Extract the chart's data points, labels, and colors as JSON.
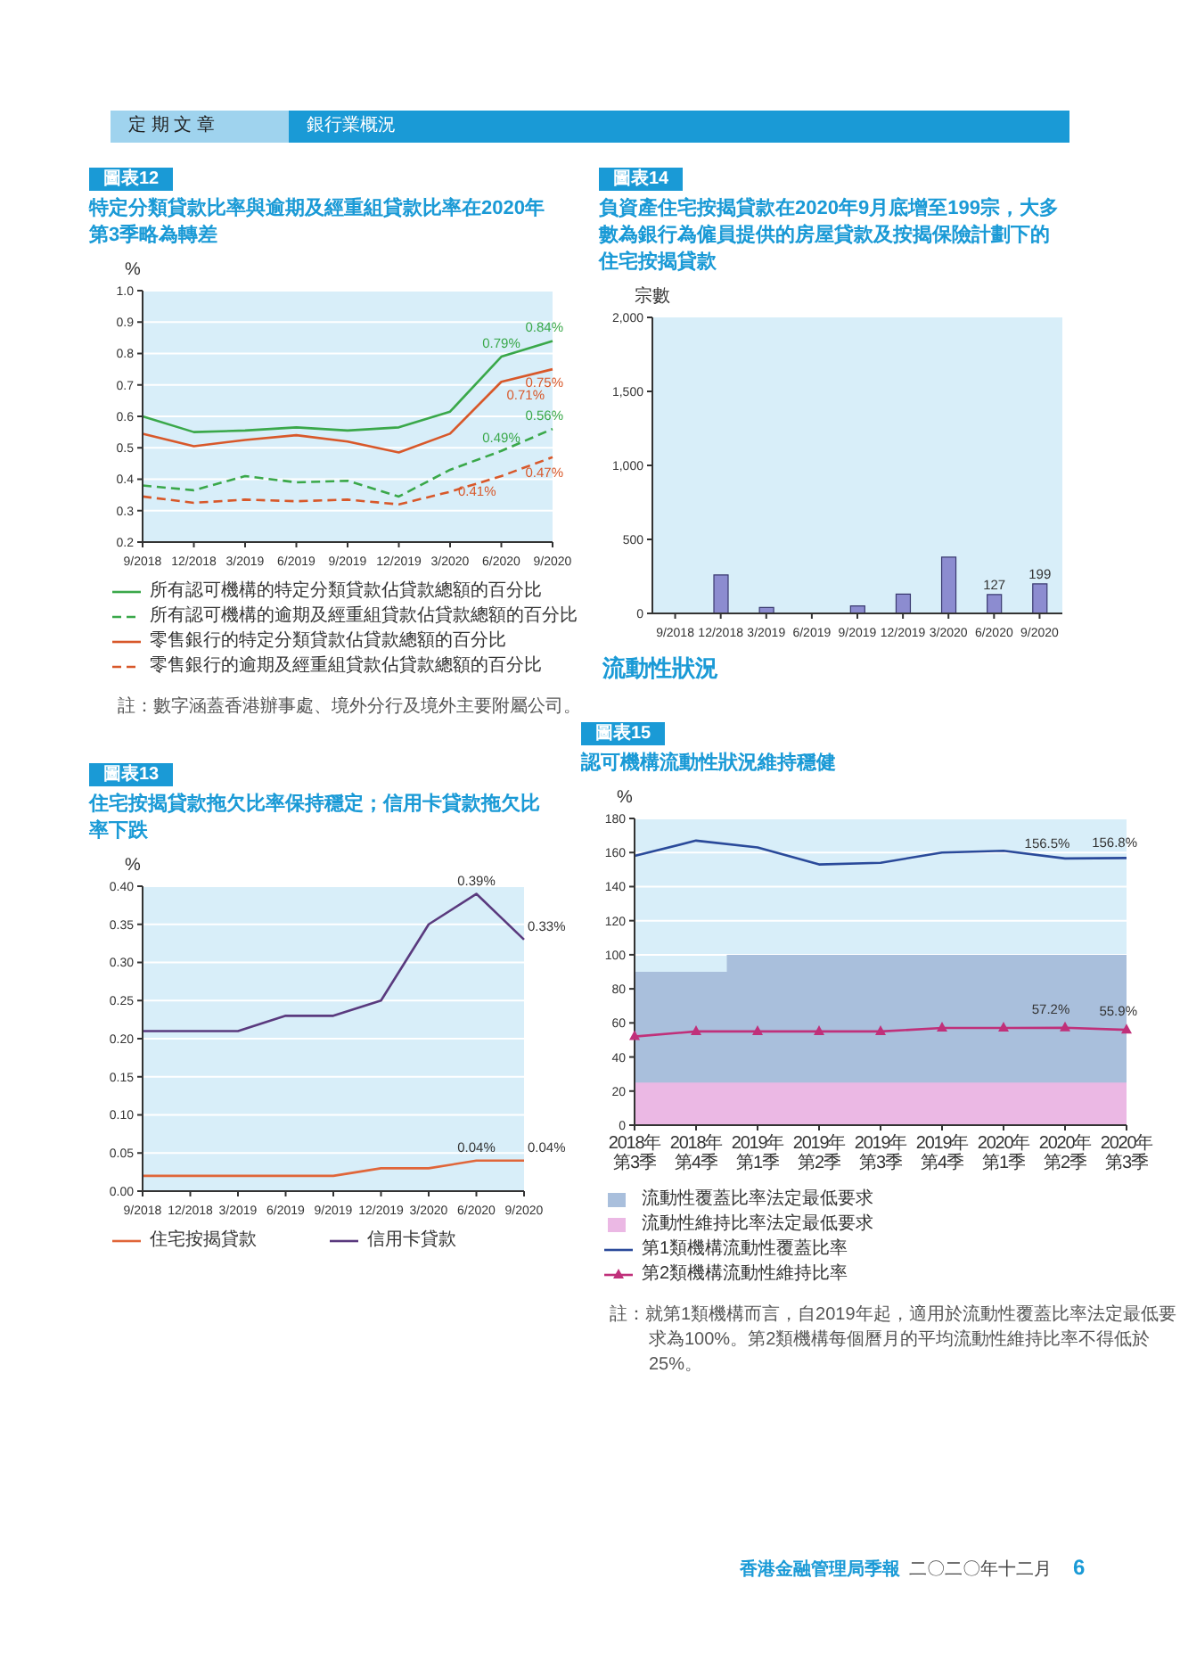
{
  "chart_data": [
    {
      "type": "line",
      "subtitle": "圖表12",
      "title": "特定分類貸款比率與逾期及經重組貸款比率在2020年第3季略為轉差",
      "ylabel": "%",
      "categories": [
        "9/2018",
        "12/2018",
        "3/2019",
        "6/2019",
        "9/2019",
        "12/2019",
        "3/2020",
        "6/2020",
        "9/2020"
      ],
      "series": [
        {
          "name": "所有認可機構的特定分類貸款佔貸款總額的百分比",
          "color": "#3aa84a",
          "line_style": "solid",
          "values": [
            0.6,
            0.55,
            0.555,
            0.565,
            0.555,
            0.565,
            0.615,
            0.79,
            0.84
          ],
          "value_labels": [
            null,
            null,
            null,
            null,
            null,
            null,
            null,
            "0.79%",
            "0.84%"
          ]
        },
        {
          "name": "所有認可機構的逾期及經重組貸款佔貸款總額的百分比",
          "color": "#3aa84a",
          "line_style": "dashed",
          "values": [
            0.38,
            0.365,
            0.41,
            0.39,
            0.395,
            0.345,
            0.43,
            0.49,
            0.56
          ],
          "value_labels": [
            null,
            null,
            null,
            null,
            null,
            null,
            null,
            "0.49%",
            "0.56%"
          ]
        },
        {
          "name": "零售銀行的特定分類貸款佔貸款總額的百分比",
          "color": "#d8582a",
          "line_style": "solid",
          "values": [
            0.545,
            0.505,
            0.525,
            0.54,
            0.52,
            0.485,
            0.545,
            0.71,
            0.75
          ],
          "value_labels": [
            null,
            null,
            null,
            null,
            null,
            null,
            null,
            "0.71%",
            "0.75%"
          ]
        },
        {
          "name": "零售銀行的逾期及經重組貸款佔貸款總額的百分比",
          "color": "#d8582a",
          "line_style": "dashed",
          "values": [
            0.345,
            0.325,
            0.335,
            0.33,
            0.335,
            0.32,
            0.36,
            0.41,
            0.47
          ],
          "value_labels": [
            null,
            null,
            null,
            null,
            null,
            null,
            null,
            "0.41%",
            "0.47%"
          ]
        }
      ],
      "ylim": [
        0.2,
        1.0
      ],
      "yticks": [
        0.2,
        0.3,
        0.4,
        0.5,
        0.6,
        0.7,
        0.8,
        0.9,
        {
          "value": 1,
          "label": "1.0"
        }
      ],
      "grid": "y",
      "legend": "bottom",
      "annotations": [
        "註：數字涵蓋香港辦事處、境外分行及境外主要附屬公司。"
      ]
    },
    {
      "type": "bar",
      "subtitle": "圖表14",
      "title": "負資產住宅按揭貸款在2020年9月底增至199宗，大多數為銀行為僱員提供的房屋貸款及按揭保險計劃下的住宅按揭貸款",
      "ylabel": "宗數",
      "categories": [
        "9/2018",
        "12/2018",
        "3/2019",
        "6/2019",
        "9/2019",
        "12/2019",
        "3/2020",
        "6/2020",
        "9/2020"
      ],
      "values": [
        0,
        260,
        40,
        0,
        50,
        130,
        380,
        127,
        199
      ],
      "color": "#8c8cd0",
      "value_labels": [
        null,
        null,
        null,
        null,
        null,
        null,
        null,
        "127",
        "199"
      ],
      "ylim": [
        0,
        2000
      ],
      "yticks": [
        0,
        500,
        {
          "value": 1000,
          "label": "1,000"
        },
        {
          "value": 1500,
          "label": "1,500"
        },
        {
          "value": 2000,
          "label": "2,000"
        }
      ]
    },
    {
      "type": "line",
      "subtitle": "圖表13",
      "title": "住宅按揭貸款拖欠比率保持穩定；信用卡貸款拖欠比率下跌",
      "ylabel": "%",
      "categories": [
        "9/2018",
        "12/2018",
        "3/2019",
        "6/2019",
        "9/2019",
        "12/2019",
        "3/2020",
        "6/2020",
        "9/2020"
      ],
      "series": [
        {
          "name": "住宅按揭貸款",
          "color": "#e0663a",
          "values": [
            0.02,
            0.02,
            0.02,
            0.02,
            0.02,
            0.03,
            0.03,
            0.04,
            0.04
          ],
          "value_labels": [
            null,
            null,
            null,
            null,
            null,
            null,
            null,
            "0.04%",
            "0.04%"
          ]
        },
        {
          "name": "信用卡貸款",
          "color": "#5a3a7e",
          "values": [
            0.21,
            0.21,
            0.21,
            0.23,
            0.23,
            0.25,
            0.35,
            0.39,
            0.33
          ],
          "value_labels": [
            null,
            null,
            null,
            null,
            null,
            null,
            null,
            "0.39%",
            "0.33%"
          ]
        }
      ],
      "ylim": [
        0,
        0.4
      ],
      "yticks": [
        {
          "value": 0,
          "label": "0.00"
        },
        {
          "value": 0.05,
          "label": "0.05"
        },
        {
          "value": 0.1,
          "label": "0.10"
        },
        {
          "value": 0.15,
          "label": "0.15"
        },
        {
          "value": 0.2,
          "label": "0.20"
        },
        {
          "value": 0.25,
          "label": "0.25"
        },
        {
          "value": 0.3,
          "label": "0.30"
        },
        {
          "value": 0.35,
          "label": "0.35"
        },
        {
          "value": 0.4,
          "label": "0.40"
        }
      ],
      "grid": "y",
      "legend": "bottom"
    },
    {
      "type": "line",
      "subtitle": "圖表15",
      "title": "認可機構流動性狀況維持穩健",
      "ylabel": "%",
      "categories": [
        "2018年第3季",
        "2018年第4季",
        "2019年第1季",
        "2019年第2季",
        "2019年第3季",
        "2019年第4季",
        "2020年第1季",
        "2020年第2季",
        "2020年第3季"
      ],
      "series": [
        {
          "name": "流動性覆蓋比率法定最低要求",
          "type": "area",
          "color": "#a9bfdc",
          "values": [
            90,
            90,
            100,
            100,
            100,
            100,
            100,
            100,
            100
          ]
        },
        {
          "name": "第1類機構流動性覆蓋比率",
          "color": "#2a4a9a",
          "values": [
            158,
            167,
            163,
            153,
            154,
            160,
            161,
            156.5,
            156.8
          ],
          "value_labels": [
            null,
            null,
            null,
            null,
            null,
            null,
            null,
            "156.5%",
            "156.8%"
          ]
        },
        {
          "name": "第2類機構流動性維持比率",
          "color": "#c0307a",
          "marker": "triangle",
          "values": [
            52,
            55,
            55,
            55,
            55,
            57,
            57,
            57.2,
            55.9
          ],
          "value_labels": [
            null,
            null,
            null,
            null,
            null,
            null,
            null,
            "57.2%",
            "55.9%"
          ]
        }
      ],
      "bands": [
        {
          "axis": "y",
          "from": 0,
          "to": 25,
          "label": "流動性維持比率法定最低要求",
          "color": "#ebb8e4"
        }
      ],
      "ylim": [
        0,
        180
      ],
      "yticks": [
        0,
        20,
        40,
        60,
        80,
        100,
        120,
        140,
        160,
        180
      ],
      "grid": "y",
      "legend": "bottom",
      "annotations": [
        "註：就第1類機構而言，自2019年起，適用於流動性覆蓋比率法定最低要求為100%。第2類機構每個曆月的平均流動性維持比率不得低於25%。"
      ]
    },
    {
      "type": "other",
      "annotations": [
        "定 期 文 章",
        "銀行業概況",
        "流動性狀況",
        "香港金融管理局季報",
        "二〇二〇年十二月",
        "6"
      ]
    }
  ]
}
